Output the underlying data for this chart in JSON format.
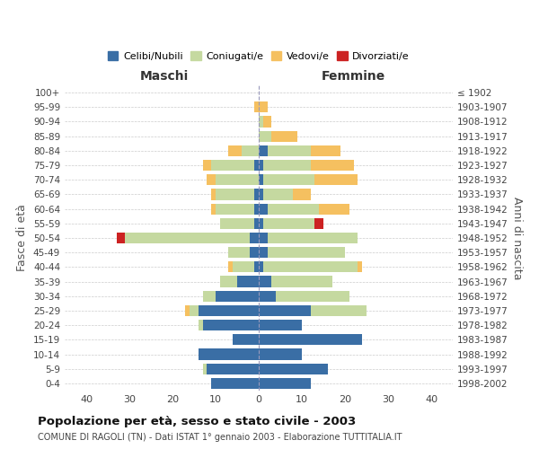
{
  "age_groups": [
    "0-4",
    "5-9",
    "10-14",
    "15-19",
    "20-24",
    "25-29",
    "30-34",
    "35-39",
    "40-44",
    "45-49",
    "50-54",
    "55-59",
    "60-64",
    "65-69",
    "70-74",
    "75-79",
    "80-84",
    "85-89",
    "90-94",
    "95-99",
    "100+"
  ],
  "birth_years": [
    "1998-2002",
    "1993-1997",
    "1988-1992",
    "1983-1987",
    "1978-1982",
    "1973-1977",
    "1968-1972",
    "1963-1967",
    "1958-1962",
    "1953-1957",
    "1948-1952",
    "1943-1947",
    "1938-1942",
    "1933-1937",
    "1928-1932",
    "1923-1927",
    "1918-1922",
    "1913-1917",
    "1908-1912",
    "1903-1907",
    "≤ 1902"
  ],
  "maschi_celibi": [
    11,
    12,
    14,
    6,
    13,
    14,
    10,
    5,
    1,
    2,
    2,
    1,
    1,
    1,
    0,
    1,
    0,
    0,
    0,
    0,
    0
  ],
  "maschi_coniugati": [
    0,
    1,
    0,
    0,
    1,
    2,
    3,
    4,
    5,
    5,
    29,
    8,
    9,
    9,
    10,
    10,
    4,
    0,
    0,
    0,
    0
  ],
  "maschi_vedovi": [
    0,
    0,
    0,
    0,
    0,
    1,
    0,
    0,
    1,
    0,
    0,
    0,
    1,
    1,
    2,
    2,
    3,
    0,
    0,
    1,
    0
  ],
  "maschi_divorziati": [
    0,
    0,
    0,
    0,
    0,
    0,
    0,
    0,
    0,
    0,
    2,
    0,
    0,
    0,
    0,
    0,
    0,
    0,
    0,
    0,
    0
  ],
  "femmine_celibi": [
    12,
    16,
    10,
    24,
    10,
    12,
    4,
    3,
    1,
    2,
    2,
    1,
    2,
    1,
    1,
    1,
    2,
    0,
    0,
    0,
    0
  ],
  "femmine_coniugati": [
    0,
    0,
    0,
    0,
    0,
    13,
    17,
    14,
    22,
    18,
    21,
    12,
    12,
    7,
    12,
    11,
    10,
    3,
    1,
    0,
    0
  ],
  "femmine_vedovi": [
    0,
    0,
    0,
    0,
    0,
    0,
    0,
    0,
    1,
    0,
    0,
    0,
    7,
    4,
    10,
    10,
    7,
    6,
    2,
    2,
    0
  ],
  "femmine_divorziati": [
    0,
    0,
    0,
    0,
    0,
    0,
    0,
    0,
    0,
    0,
    0,
    2,
    0,
    0,
    0,
    0,
    0,
    0,
    0,
    0,
    0
  ],
  "colors": {
    "celibi": "#3A6EA5",
    "coniugati": "#C5D9A0",
    "vedovi": "#F5C060",
    "divorziati": "#CC2222"
  },
  "title": "Popolazione per età, sesso e stato civile - 2003",
  "subtitle": "COMUNE DI RAGOLI (TN) - Dati ISTAT 1° gennaio 2003 - Elaborazione TUTTITALIA.IT",
  "xlabel_maschi": "Maschi",
  "xlabel_femmine": "Femmine",
  "ylabel_left": "Fasce di età",
  "ylabel_right": "Anni di nascita",
  "xlim": 45,
  "background_color": "#ffffff",
  "grid_color": "#cccccc"
}
